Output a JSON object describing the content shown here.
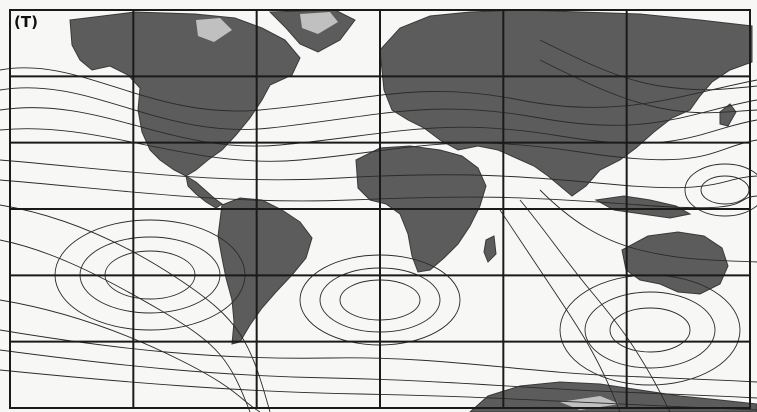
{
  "map": {
    "label": "(T)",
    "colors": {
      "paper": "#f7f7f5",
      "land": "#5c5c5c",
      "land_edge": "#3a3a3a",
      "ice": "#d9d9d9",
      "streamline": "#2b2b2b",
      "grid": "#1a1a1a"
    },
    "grid": {
      "columns": 6,
      "rows": 6
    },
    "style": "world map with wind streamlines and a rectangular grid overlay"
  }
}
